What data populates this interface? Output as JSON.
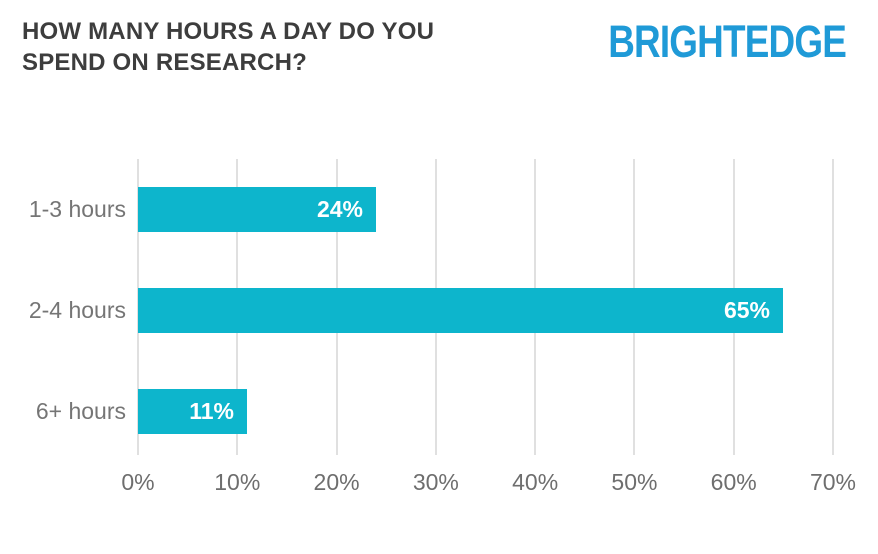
{
  "header": {
    "title": "HOW MANY HOURS A DAY DO YOU SPEND ON RESEARCH?",
    "logo_text": "BRIGHTEDGE"
  },
  "colors": {
    "bar": "#0db5cc",
    "logo_blue": "#1f9ad7",
    "title_text": "#3d3d3d",
    "category_text": "#757575",
    "axis_text": "#6e6e6e",
    "gridline": "#e0e0e0",
    "value_label_text": "#ffffff",
    "background": "#ffffff"
  },
  "chart_data": {
    "type": "bar",
    "orientation": "horizontal",
    "title": "HOW MANY HOURS A DAY DO YOU SPEND ON RESEARCH?",
    "categories": [
      "1-3 hours",
      "2-4 hours",
      "6+ hours"
    ],
    "values": [
      24,
      65,
      11
    ],
    "value_labels": [
      "24%",
      "65%",
      "11%"
    ],
    "xlabel": "",
    "ylabel": "",
    "xlim": [
      0,
      70
    ],
    "x_tick_values": [
      0,
      10,
      20,
      30,
      40,
      50,
      60,
      70
    ],
    "x_tick_labels": [
      "0%",
      "10%",
      "20%",
      "30%",
      "40%",
      "50%",
      "60%",
      "70%"
    ],
    "grid": "vertical-gridlines-on",
    "legend": "none",
    "value_labels_position": "inside-end",
    "unit": "percent"
  }
}
